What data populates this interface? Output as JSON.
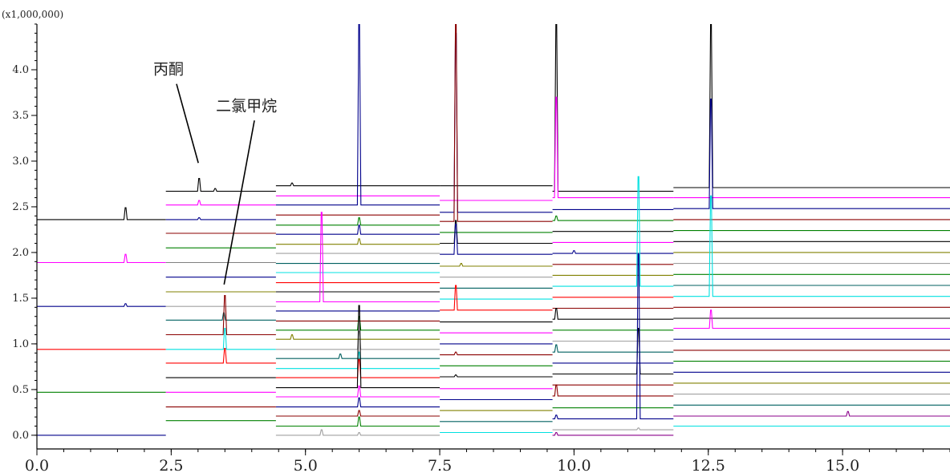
{
  "chart_data": {
    "type": "line",
    "title": "",
    "xlabel": "",
    "ylabel": "",
    "y_scale_label": "(x1,000,000)",
    "xlim": [
      0.0,
      17.0
    ],
    "ylim": [
      -0.15,
      4.5
    ],
    "x_ticks": [
      "0.0",
      "2.5",
      "5.0",
      "7.5",
      "10.0",
      "12.5",
      "15.0"
    ],
    "x_tick_values": [
      0.0,
      2.5,
      5.0,
      7.5,
      10.0,
      12.5,
      15.0
    ],
    "y_ticks": [
      "0.0",
      "0.5",
      "1.0",
      "1.5",
      "2.0",
      "2.5",
      "3.0",
      "3.5",
      "4.0"
    ],
    "y_tick_values": [
      0.0,
      0.5,
      1.0,
      1.5,
      2.0,
      2.5,
      3.0,
      3.5,
      4.0
    ],
    "grid": false,
    "legend": "none",
    "annotations": [
      {
        "text": "丙酮",
        "x": 3.02,
        "y": 2.98,
        "label_x": 2.45,
        "label_y": 3.95
      },
      {
        "text": "二氯甲烷",
        "x": 3.5,
        "y": 1.65,
        "label_x": 3.9,
        "label_y": 3.55
      }
    ],
    "segments": [
      {
        "name": "seg1",
        "x_range": [
          0.0,
          2.4
        ],
        "traces": [
          {
            "offset": 2.36,
            "color": "#000000",
            "peaks": [
              [
                1.65,
                0.13
              ]
            ]
          },
          {
            "offset": 1.89,
            "color": "#ff00ff",
            "peaks": [
              [
                1.65,
                0.09
              ]
            ]
          },
          {
            "offset": 1.41,
            "color": "#00008b",
            "peaks": [
              [
                1.65,
                0.03
              ]
            ]
          },
          {
            "offset": 0.94,
            "color": "#ff0000",
            "peaks": []
          },
          {
            "offset": 0.47,
            "color": "#008000",
            "peaks": []
          },
          {
            "offset": 0.0,
            "color": "#00008b",
            "peaks": []
          }
        ]
      },
      {
        "name": "seg2",
        "x_range": [
          2.4,
          4.45
        ],
        "traces": [
          {
            "offset": 2.67,
            "color": "#000000",
            "peaks": [
              [
                3.02,
                0.14
              ],
              [
                3.32,
                0.03
              ]
            ]
          },
          {
            "offset": 2.52,
            "color": "#ff00ff",
            "peaks": [
              [
                3.02,
                0.05
              ]
            ]
          },
          {
            "offset": 2.36,
            "color": "#00008b",
            "peaks": [
              [
                3.02,
                0.02
              ]
            ]
          },
          {
            "offset": 2.21,
            "color": "#8b0000",
            "peaks": []
          },
          {
            "offset": 2.05,
            "color": "#008000",
            "peaks": []
          },
          {
            "offset": 1.89,
            "color": "#808080",
            "peaks": []
          },
          {
            "offset": 1.73,
            "color": "#00008b",
            "peaks": []
          },
          {
            "offset": 1.57,
            "color": "#808000",
            "peaks": []
          },
          {
            "offset": 1.41,
            "color": "#a0a0a0",
            "peaks": []
          },
          {
            "offset": 1.26,
            "color": "#006060",
            "peaks": [
              [
                3.48,
                0.08
              ]
            ]
          },
          {
            "offset": 1.1,
            "color": "#8b0000",
            "peaks": [
              [
                3.5,
                0.43
              ]
            ]
          },
          {
            "offset": 0.94,
            "color": "#00e0e0",
            "peaks": [
              [
                3.5,
                0.23
              ]
            ]
          },
          {
            "offset": 0.79,
            "color": "#ff0000",
            "peaks": [
              [
                3.5,
                0.16
              ]
            ]
          },
          {
            "offset": 0.63,
            "color": "#000000",
            "peaks": []
          },
          {
            "offset": 0.47,
            "color": "#ff00ff",
            "peaks": []
          },
          {
            "offset": 0.31,
            "color": "#8b0000",
            "peaks": []
          },
          {
            "offset": 0.16,
            "color": "#008000",
            "peaks": []
          }
        ]
      },
      {
        "name": "seg3",
        "x_range": [
          4.45,
          7.5
        ],
        "traces": [
          {
            "offset": 2.73,
            "color": "#000000",
            "peaks": [
              [
                4.75,
                0.03
              ]
            ]
          },
          {
            "offset": 2.62,
            "color": "#ff00ff",
            "peaks": []
          },
          {
            "offset": 2.52,
            "color": "#00008b",
            "peaks": [
              [
                6.0,
                1.98
              ]
            ]
          },
          {
            "offset": 2.41,
            "color": "#8b0000",
            "peaks": []
          },
          {
            "offset": 2.3,
            "color": "#008000",
            "peaks": [
              [
                6.0,
                0.08
              ]
            ]
          },
          {
            "offset": 2.2,
            "color": "#00008b",
            "peaks": [
              [
                6.0,
                0.1
              ]
            ]
          },
          {
            "offset": 2.09,
            "color": "#808000",
            "peaks": [
              [
                6.0,
                0.06
              ]
            ]
          },
          {
            "offset": 1.99,
            "color": "#a0a0a0",
            "peaks": []
          },
          {
            "offset": 1.88,
            "color": "#006060",
            "peaks": []
          },
          {
            "offset": 1.78,
            "color": "#00e0e0",
            "peaks": []
          },
          {
            "offset": 1.67,
            "color": "#ff0000",
            "peaks": []
          },
          {
            "offset": 1.57,
            "color": "#000000",
            "peaks": []
          },
          {
            "offset": 1.46,
            "color": "#ff00ff",
            "peaks": [
              [
                5.3,
                0.98
              ]
            ]
          },
          {
            "offset": 1.36,
            "color": "#00008b",
            "peaks": []
          },
          {
            "offset": 1.25,
            "color": "#8b0000",
            "peaks": []
          },
          {
            "offset": 1.15,
            "color": "#008000",
            "peaks": [
              [
                6.0,
                0.15
              ]
            ]
          },
          {
            "offset": 1.05,
            "color": "#808000",
            "peaks": [
              [
                4.75,
                0.05
              ]
            ]
          },
          {
            "offset": 0.94,
            "color": "#a0a0a0",
            "peaks": [
              [
                6.0,
                0.2
              ]
            ]
          },
          {
            "offset": 0.84,
            "color": "#006060",
            "peaks": [
              [
                5.65,
                0.05
              ]
            ]
          },
          {
            "offset": 0.73,
            "color": "#00e0e0",
            "peaks": [
              [
                6.0,
                0.18
              ]
            ]
          },
          {
            "offset": 0.63,
            "color": "#ff0000",
            "peaks": [
              [
                6.0,
                0.2
              ]
            ]
          },
          {
            "offset": 0.52,
            "color": "#000000",
            "peaks": [
              [
                6.0,
                0.9
              ]
            ]
          },
          {
            "offset": 0.42,
            "color": "#ff00ff",
            "peaks": [
              [
                6.0,
                0.12
              ]
            ]
          },
          {
            "offset": 0.31,
            "color": "#00008b",
            "peaks": [
              [
                6.0,
                0.1
              ]
            ]
          },
          {
            "offset": 0.21,
            "color": "#8b0000",
            "peaks": [
              [
                6.0,
                0.06
              ]
            ]
          },
          {
            "offset": 0.1,
            "color": "#008000",
            "peaks": [
              [
                6.0,
                0.1
              ]
            ]
          },
          {
            "offset": 0.0,
            "color": "#a0a0a0",
            "peaks": [
              [
                5.3,
                0.06
              ],
              [
                6.0,
                0.03
              ]
            ]
          }
        ]
      },
      {
        "name": "seg4",
        "x_range": [
          7.5,
          9.6
        ],
        "traces": [
          {
            "offset": 2.73,
            "color": "#000000",
            "peaks": []
          },
          {
            "offset": 2.57,
            "color": "#ff00ff",
            "peaks": []
          },
          {
            "offset": 2.44,
            "color": "#00008b",
            "peaks": [
              [
                7.8,
                1.96
              ]
            ]
          },
          {
            "offset": 2.34,
            "color": "#8b0000",
            "peaks": [
              [
                7.8,
                2.16
              ]
            ]
          },
          {
            "offset": 2.22,
            "color": "#008000",
            "peaks": []
          },
          {
            "offset": 2.1,
            "color": "#000000",
            "peaks": [
              [
                7.8,
                0.25
              ]
            ]
          },
          {
            "offset": 1.98,
            "color": "#00008b",
            "peaks": [
              [
                7.8,
                0.33
              ]
            ]
          },
          {
            "offset": 1.85,
            "color": "#808000",
            "peaks": [
              [
                7.9,
                0.03
              ]
            ]
          },
          {
            "offset": 1.73,
            "color": "#a0a0a0",
            "peaks": []
          },
          {
            "offset": 1.61,
            "color": "#006060",
            "peaks": []
          },
          {
            "offset": 1.49,
            "color": "#00e0e0",
            "peaks": []
          },
          {
            "offset": 1.37,
            "color": "#ff0000",
            "peaks": [
              [
                7.8,
                0.27
              ]
            ]
          },
          {
            "offset": 1.24,
            "color": "#000000",
            "peaks": []
          },
          {
            "offset": 1.12,
            "color": "#ff00ff",
            "peaks": []
          },
          {
            "offset": 1.0,
            "color": "#00008b",
            "peaks": []
          },
          {
            "offset": 0.88,
            "color": "#8b0000",
            "peaks": [
              [
                7.8,
                0.03
              ]
            ]
          },
          {
            "offset": 0.76,
            "color": "#008000",
            "peaks": []
          },
          {
            "offset": 0.64,
            "color": "#000000",
            "peaks": [
              [
                7.8,
                0.02
              ]
            ]
          },
          {
            "offset": 0.51,
            "color": "#ff00ff",
            "peaks": []
          },
          {
            "offset": 0.39,
            "color": "#00008b",
            "peaks": []
          },
          {
            "offset": 0.27,
            "color": "#808000",
            "peaks": []
          },
          {
            "offset": 0.15,
            "color": "#006060",
            "peaks": []
          },
          {
            "offset": 0.03,
            "color": "#00e0e0",
            "peaks": []
          }
        ]
      },
      {
        "name": "seg5",
        "x_range": [
          9.6,
          11.85
        ],
        "traces": [
          {
            "offset": 2.67,
            "color": "#000000",
            "peaks": [
              [
                9.67,
                1.85
              ]
            ]
          },
          {
            "offset": 2.6,
            "color": "#ff00ff",
            "peaks": [
              [
                9.67,
                1.1
              ]
            ]
          },
          {
            "offset": 2.47,
            "color": "#00008b",
            "peaks": []
          },
          {
            "offset": 2.35,
            "color": "#008000",
            "peaks": [
              [
                9.67,
                0.05
              ]
            ]
          },
          {
            "offset": 2.23,
            "color": "#000000",
            "peaks": []
          },
          {
            "offset": 2.11,
            "color": "#ff00ff",
            "peaks": []
          },
          {
            "offset": 1.99,
            "color": "#00008b",
            "peaks": [
              [
                10.0,
                0.03
              ]
            ]
          },
          {
            "offset": 1.87,
            "color": "#8b0000",
            "peaks": []
          },
          {
            "offset": 1.75,
            "color": "#808000",
            "peaks": []
          },
          {
            "offset": 1.63,
            "color": "#00e0e0",
            "peaks": [
              [
                11.2,
                1.2
              ]
            ]
          },
          {
            "offset": 1.51,
            "color": "#ff0000",
            "peaks": []
          },
          {
            "offset": 1.39,
            "color": "#8b0000",
            "peaks": []
          },
          {
            "offset": 1.27,
            "color": "#000000",
            "peaks": [
              [
                9.67,
                0.12
              ]
            ]
          },
          {
            "offset": 1.15,
            "color": "#008000",
            "peaks": []
          },
          {
            "offset": 1.03,
            "color": "#a0a0a0",
            "peaks": []
          },
          {
            "offset": 0.91,
            "color": "#006060",
            "peaks": [
              [
                9.67,
                0.08
              ]
            ]
          },
          {
            "offset": 0.79,
            "color": "#00008b",
            "peaks": []
          },
          {
            "offset": 0.67,
            "color": "#000000",
            "peaks": [
              [
                11.2,
                0.5
              ]
            ]
          },
          {
            "offset": 0.55,
            "color": "#8b0000",
            "peaks": []
          },
          {
            "offset": 0.43,
            "color": "#8b0000",
            "peaks": [
              [
                9.67,
                0.12
              ]
            ]
          },
          {
            "offset": 0.3,
            "color": "#008000",
            "peaks": []
          },
          {
            "offset": 0.18,
            "color": "#00008b",
            "peaks": [
              [
                9.67,
                0.04
              ],
              [
                11.2,
                1.8
              ]
            ]
          },
          {
            "offset": 0.06,
            "color": "#a0a0a0",
            "peaks": [
              [
                11.2,
                0.02
              ]
            ]
          },
          {
            "offset": 0.0,
            "color": "#8b008b",
            "peaks": [
              [
                9.67,
                0.03
              ]
            ]
          }
        ]
      },
      {
        "name": "seg6",
        "x_range": [
          11.85,
          17.0
        ],
        "traces": [
          {
            "offset": 2.71,
            "color": "#000000",
            "peaks": [
              [
                12.55,
                1.8
              ]
            ]
          },
          {
            "offset": 2.6,
            "color": "#ff00ff",
            "peaks": []
          },
          {
            "offset": 2.48,
            "color": "#00008b",
            "peaks": [
              [
                12.55,
                1.2
              ]
            ]
          },
          {
            "offset": 2.36,
            "color": "#8b0000",
            "peaks": []
          },
          {
            "offset": 2.24,
            "color": "#008000",
            "peaks": []
          },
          {
            "offset": 2.12,
            "color": "#000000",
            "peaks": []
          },
          {
            "offset": 2.0,
            "color": "#808000",
            "peaks": []
          },
          {
            "offset": 1.88,
            "color": "#a0a0a0",
            "peaks": []
          },
          {
            "offset": 1.76,
            "color": "#008000",
            "peaks": []
          },
          {
            "offset": 1.64,
            "color": "#006060",
            "peaks": []
          },
          {
            "offset": 1.52,
            "color": "#00e0e0",
            "peaks": [
              [
                12.55,
                1.1
              ]
            ]
          },
          {
            "offset": 1.4,
            "color": "#8b0000",
            "peaks": []
          },
          {
            "offset": 1.28,
            "color": "#000000",
            "peaks": []
          },
          {
            "offset": 1.17,
            "color": "#ff00ff",
            "peaks": [
              [
                12.55,
                0.2
              ]
            ]
          },
          {
            "offset": 1.05,
            "color": "#00008b",
            "peaks": []
          },
          {
            "offset": 0.93,
            "color": "#8b0000",
            "peaks": []
          },
          {
            "offset": 0.81,
            "color": "#008000",
            "peaks": []
          },
          {
            "offset": 0.69,
            "color": "#00008b",
            "peaks": []
          },
          {
            "offset": 0.57,
            "color": "#808000",
            "peaks": []
          },
          {
            "offset": 0.45,
            "color": "#a0a0a0",
            "peaks": []
          },
          {
            "offset": 0.33,
            "color": "#006060",
            "peaks": []
          },
          {
            "offset": 0.21,
            "color": "#8b008b",
            "peaks": [
              [
                15.1,
                0.05
              ]
            ]
          },
          {
            "offset": 0.1,
            "color": "#00e0e0",
            "peaks": []
          }
        ]
      }
    ]
  }
}
